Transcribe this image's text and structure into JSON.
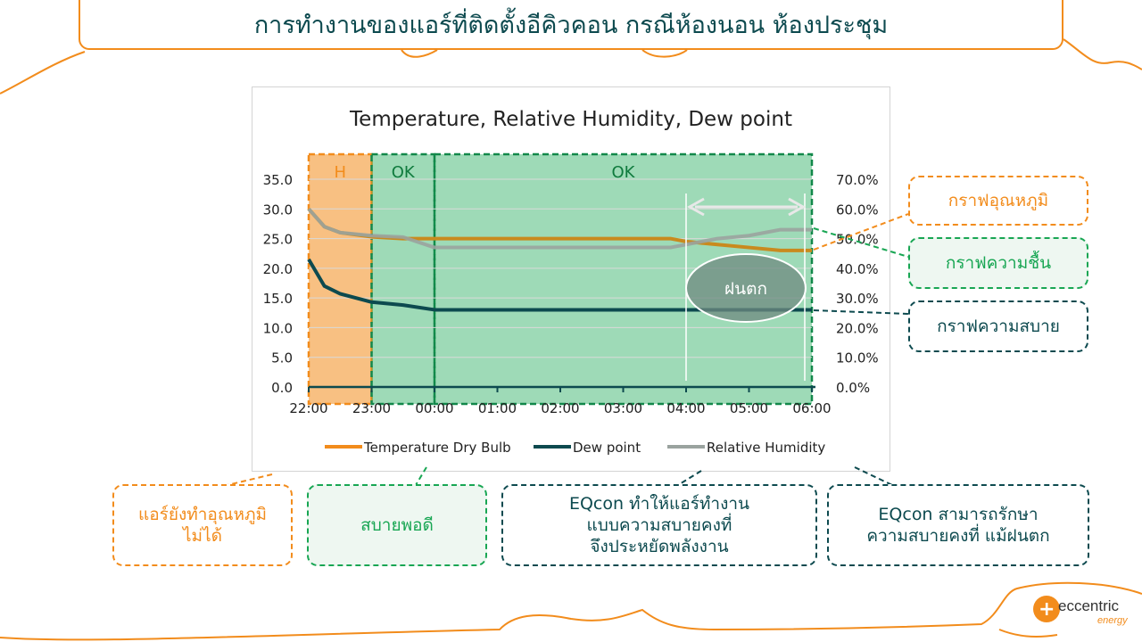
{
  "slide": {
    "title": "การทำงานของแอร์ที่ติดตั้งอีคิวคอน กรณีห้องนอน ห้องประชุม",
    "colors": {
      "orange": "#f28c1c",
      "green": "#18a653",
      "dark_teal": "#0d4a4f"
    }
  },
  "chart_data": {
    "type": "line",
    "title": "Temperature, Relative Humidity, Dew point",
    "categories": [
      "22:00",
      "23:00",
      "00:00",
      "01:00",
      "02:00",
      "03:00",
      "04:00",
      "05:00",
      "06:00"
    ],
    "y_left": {
      "ticks": [
        "35.0",
        "30.0",
        "25.0",
        "20.0",
        "15.0",
        "10.0",
        "5.0",
        "0.0"
      ],
      "range": [
        0,
        35
      ]
    },
    "y_right": {
      "ticks": [
        "70.0%",
        "60.0%",
        "50.0%",
        "40.0%",
        "30.0%",
        "20.0%",
        "10.0%",
        "0.0%"
      ],
      "range": [
        0,
        70
      ]
    },
    "grid": true,
    "legend_position": "bottom",
    "series": [
      {
        "name": "Temperature Dry Bulb",
        "axis": "left",
        "color": "#c98a1e",
        "x": [
          "22:00",
          "22:15",
          "22:30",
          "23:00",
          "23:30",
          "00:00",
          "01:00",
          "02:00",
          "03:00",
          "03:45",
          "04:00",
          "04:30",
          "05:00",
          "05:30",
          "06:00"
        ],
        "values": [
          30.0,
          27.0,
          26.0,
          25.3,
          25.0,
          25.0,
          25.0,
          25.0,
          25.0,
          25.0,
          24.5,
          24.0,
          23.5,
          23.0,
          23.0
        ]
      },
      {
        "name": "Dew point",
        "axis": "left",
        "color": "#0d4a4f",
        "x": [
          "22:00",
          "22:15",
          "22:30",
          "23:00",
          "23:30",
          "00:00",
          "01:00",
          "02:00",
          "03:00",
          "04:00",
          "05:00",
          "06:00"
        ],
        "values": [
          21.5,
          17.0,
          15.7,
          14.3,
          13.8,
          13.0,
          13.0,
          13.0,
          13.0,
          13.0,
          13.0,
          13.0
        ]
      },
      {
        "name": "Relative Humidity",
        "axis": "right",
        "color": "#9aa39f",
        "x": [
          "22:00",
          "22:15",
          "22:30",
          "23:00",
          "23:30",
          "00:00",
          "01:00",
          "02:00",
          "03:00",
          "03:45",
          "04:00",
          "04:30",
          "05:00",
          "05:30",
          "06:00"
        ],
        "values": [
          60.0,
          54.0,
          52.0,
          51.0,
          50.5,
          47.0,
          47.0,
          47.0,
          47.0,
          47.0,
          48.0,
          50.0,
          51.0,
          53.0,
          53.0
        ]
      }
    ],
    "zones": [
      {
        "label": "H",
        "from": "22:00",
        "to": "23:00",
        "color": "#f28c1c"
      },
      {
        "label": "OK",
        "from": "23:00",
        "to": "00:00",
        "color": "#18a653"
      },
      {
        "label": "OK",
        "from": "00:00",
        "to": "06:00",
        "color": "#18a653"
      }
    ],
    "annotation": {
      "label": "ฝนตก",
      "arrow_from": "04:00",
      "arrow_to": "06:00"
    }
  },
  "labels": {
    "temp_graph": "กราฟอุณหภูมิ",
    "humidity_graph": "กราฟความชื้น",
    "comfort_graph": "กราฟความสบาย"
  },
  "bottom": {
    "b1_line1": "แอร์ยังทำอุณหภูมิ",
    "b1_line2": "ไม่ได้",
    "b2": "สบายพอดี",
    "b3_line1": "EQcon ทำให้แอร์ทำงาน",
    "b3_line2": "แบบความสบายคงที่",
    "b3_line3": "จึงประหยัดพลังงาน",
    "b4_line1": "EQcon สามารถรักษา",
    "b4_line2": "ความสบายคงที่ แม้ฝนตก"
  },
  "logo": {
    "text": "eccentric",
    "sub": "energy"
  }
}
